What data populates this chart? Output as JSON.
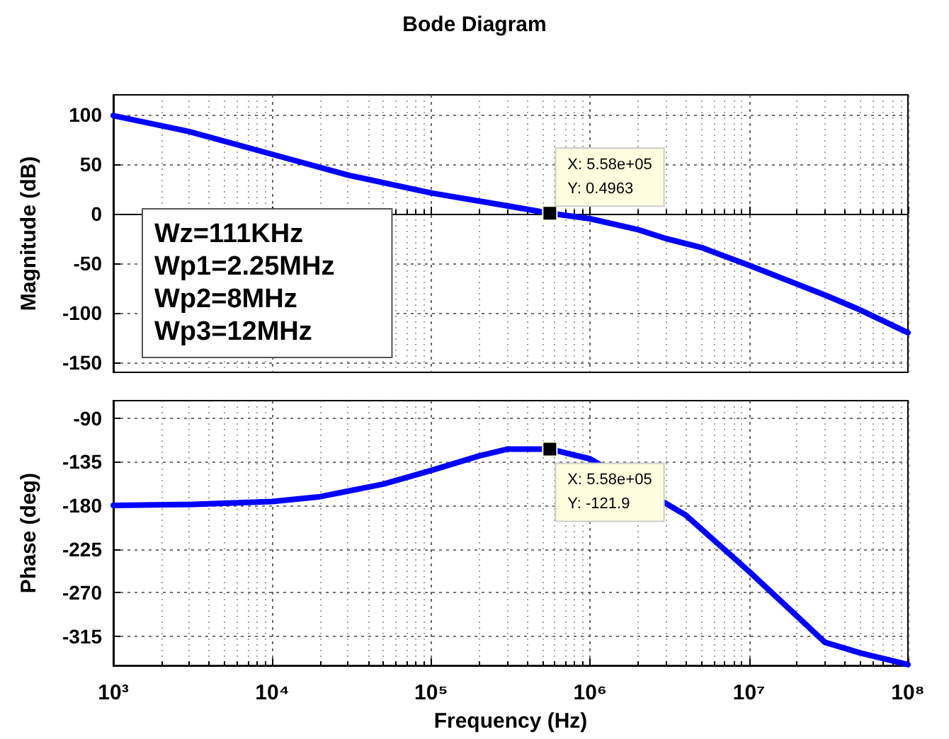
{
  "chart_data": [
    {
      "type": "line",
      "title": "Bode Diagram",
      "ylabel": "Magnitude (dB)",
      "log": "x",
      "grid": true,
      "marker": "none",
      "line_style": "solid",
      "tick_labels": "y",
      "xlim": [
        1000,
        100000000
      ],
      "xticks": [
        {
          "value": 1000,
          "label": null
        },
        {
          "value": 10000,
          "label": null
        },
        {
          "value": 100000,
          "label": null
        },
        {
          "value": 1000000,
          "label": null
        },
        {
          "value": 10000000,
          "label": null
        },
        {
          "value": 100000000,
          "label": null
        }
      ],
      "ylim": [
        -160,
        120
      ],
      "yticks": [
        -150,
        -100,
        -50,
        0,
        50,
        100
      ],
      "annotations": [
        "Wz=111KHz\nWp1=2.25MHz\nWp2=8MHz\nWp3=12MHz",
        {
          "text": "X: 5.58e+05\nY: 0.4963",
          "x": 558000,
          "y": 0.4963
        }
      ],
      "series": [
        {
          "color": "#0000ff",
          "x": [
            1000,
            3000,
            10000,
            30000,
            100000,
            300000,
            558000,
            1000000,
            2000000,
            3000000,
            5000000,
            10000000,
            30000000,
            50000000,
            100000000
          ],
          "values": [
            99,
            83,
            60,
            39,
            21,
            8,
            0.4963,
            -5,
            -16,
            -25,
            -34,
            -52,
            -82,
            -97,
            -120
          ]
        }
      ]
    },
    {
      "type": "line",
      "xlabel": "Frequency (Hz)",
      "ylabel": "Phase (deg)",
      "log": "x",
      "grid": true,
      "marker": "none",
      "line_style": "solid",
      "xlim": [
        1000,
        100000000
      ],
      "xticks": [
        {
          "value": 1000,
          "label": "10³"
        },
        {
          "value": 10000,
          "label": "10⁴"
        },
        {
          "value": 100000,
          "label": "10⁵"
        },
        {
          "value": 1000000,
          "label": "10⁶"
        },
        {
          "value": 10000000,
          "label": "10⁷"
        },
        {
          "value": 100000000,
          "label": "10⁸"
        }
      ],
      "ylim": [
        -345,
        -72
      ],
      "yticks": [
        -315,
        -270,
        -225,
        -180,
        -135,
        -90
      ],
      "annotations": [
        {
          "text": "X: 5.58e+05\nY: -121.9",
          "x": 558000,
          "y": -121.9
        }
      ],
      "series": [
        {
          "color": "#0000ff",
          "x": [
            1000,
            3000,
            10000,
            20000,
            50000,
            100000,
            200000,
            300000,
            558000,
            1000000,
            2000000,
            4000000,
            10000000,
            20000000,
            30000000,
            50000000,
            100000000
          ],
          "values": [
            -180,
            -179,
            -176,
            -171,
            -158,
            -144,
            -129,
            -122,
            -121.9,
            -132,
            null,
            -190,
            -248,
            -294,
            -321,
            -332,
            -344
          ]
        }
      ]
    }
  ]
}
